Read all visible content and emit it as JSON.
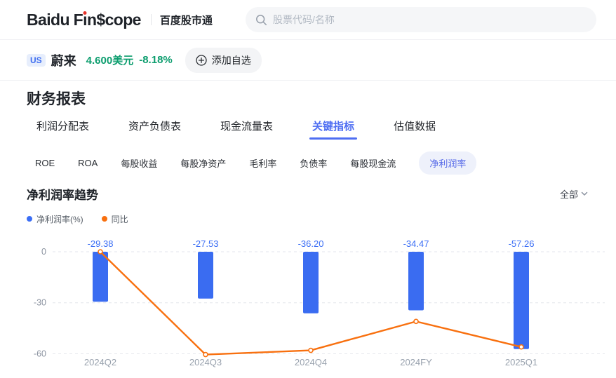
{
  "header": {
    "logo": {
      "pre": "Baidu F",
      "dot_i": "ı",
      "post": "n$cope",
      "dot_color": "#e8352c"
    },
    "brand_sub": "百度股市通",
    "search_placeholder": "股票代码/名称"
  },
  "stock_bar": {
    "market_badge": "US",
    "name": "蔚来",
    "price": "4.600美元",
    "change": "-8.18%",
    "change_color": "#0c9d6e",
    "add_watchlist_label": "添加自选"
  },
  "section_title": "财务报表",
  "tabs": [
    {
      "label": "利润分配表",
      "active": false
    },
    {
      "label": "资产负债表",
      "active": false
    },
    {
      "label": "现金流量表",
      "active": false
    },
    {
      "label": "关键指标",
      "active": true
    },
    {
      "label": "估值数据",
      "active": false
    }
  ],
  "subtabs": [
    {
      "label": "ROE",
      "active": false
    },
    {
      "label": "ROA",
      "active": false
    },
    {
      "label": "每股收益",
      "active": false
    },
    {
      "label": "每股净资产",
      "active": false
    },
    {
      "label": "毛利率",
      "active": false
    },
    {
      "label": "负债率",
      "active": false
    },
    {
      "label": "每股现金流",
      "active": false
    },
    {
      "label": "净利润率",
      "active": true
    }
  ],
  "chart_header": {
    "title": "净利润率趋势",
    "range_label": "全部"
  },
  "legend": [
    {
      "label": "净利润率(%)",
      "color": "#3b6ef5"
    },
    {
      "label": "同比",
      "color": "#f8700f"
    }
  ],
  "chart_data": {
    "type": "combo-bar-line",
    "categories": [
      "2024Q2",
      "2024Q3",
      "2024Q4",
      "2024FY",
      "2025Q1"
    ],
    "series": [
      {
        "name": "净利润率(%)",
        "type": "bar",
        "color": "#3a6cf1",
        "values": [
          -29.38,
          -27.53,
          -36.2,
          -34.47,
          -57.26
        ],
        "labels": [
          "-29.38",
          "-27.53",
          "-36.20",
          "-34.47",
          "-57.26"
        ],
        "label_color": "#3b6ef5"
      },
      {
        "name": "同比",
        "type": "line",
        "color": "#f8700f",
        "values": [
          0,
          -60.5,
          -58,
          -41,
          -56
        ],
        "values_estimated": true
      }
    ],
    "yticks": [
      0,
      -30,
      -60
    ],
    "ylim": [
      -65,
      8
    ],
    "grid": "dashed-horizontal",
    "legend_position": "top-left",
    "axis_text_color": "#98a1ad"
  }
}
